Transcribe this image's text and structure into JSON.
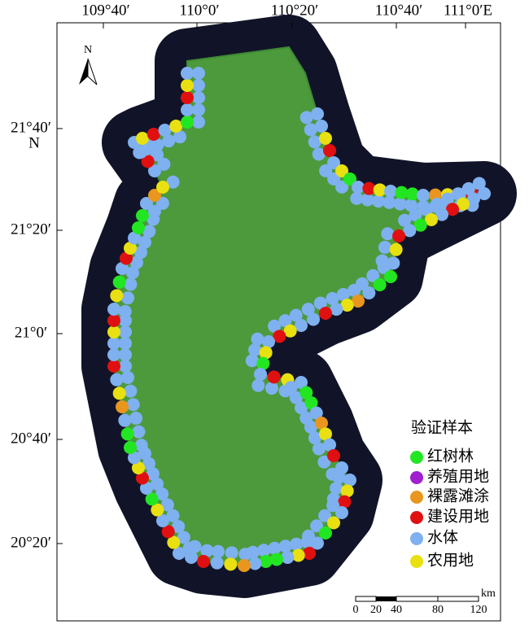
{
  "map": {
    "top_labels": [
      "109°40′",
      "110°0′",
      "110°20′",
      "110°40′",
      "111°0′E"
    ],
    "left_labels": [
      "21°40′",
      "21°20′",
      "21°0′",
      "20°40′",
      "20°20′"
    ],
    "lat_hemisphere": "N",
    "north_arrow": "N",
    "legend": {
      "title": "验证样本",
      "items": [
        {
          "label": "红树林",
          "color": "#22e622"
        },
        {
          "label": "养殖用地",
          "color": "#a020d0"
        },
        {
          "label": "裸露滩涂",
          "color": "#e8961e"
        },
        {
          "label": "建设用地",
          "color": "#e01010"
        },
        {
          "label": "水体",
          "color": "#7fb0f0"
        },
        {
          "label": "农用地",
          "color": "#e8e010"
        }
      ]
    },
    "scale_bar": {
      "labels": [
        "0",
        "20",
        "40",
        "80",
        "120"
      ],
      "unit": "km"
    }
  }
}
